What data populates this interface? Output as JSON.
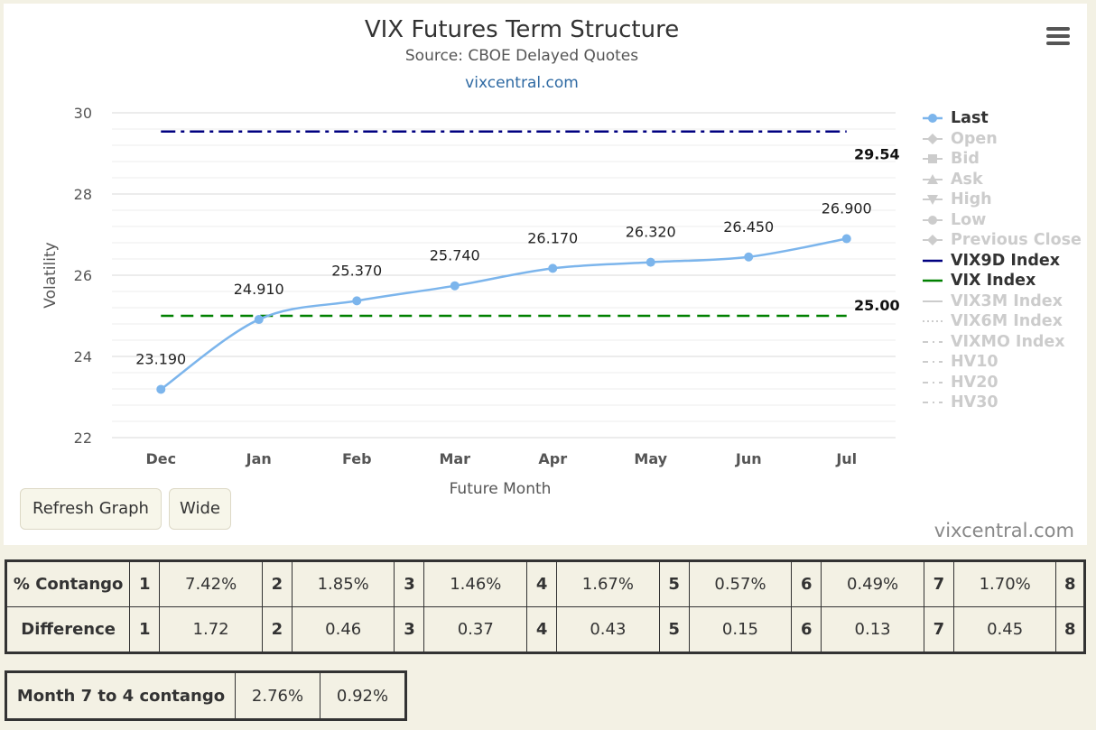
{
  "chart_data": {
    "type": "line",
    "title": "VIX Futures Term Structure",
    "subtitle": "Source: CBOE Delayed Quotes",
    "site_label": "vixcentral.com",
    "credit": "vixcentral.com",
    "xlabel": "Future Month",
    "ylabel": "Volatility",
    "categories": [
      "Dec",
      "Jan",
      "Feb",
      "Mar",
      "Apr",
      "May",
      "Jun",
      "Jul"
    ],
    "ylim": [
      22,
      30
    ],
    "yticks": [
      22,
      24,
      26,
      28,
      30
    ],
    "series": [
      {
        "name": "Last",
        "values": [
          23.19,
          24.91,
          25.37,
          25.74,
          26.17,
          26.32,
          26.45,
          26.9
        ],
        "labels": [
          "23.190",
          "24.910",
          "25.370",
          "25.740",
          "26.170",
          "26.320",
          "26.450",
          "26.900"
        ],
        "color": "#7cb5ec"
      }
    ],
    "hlines": [
      {
        "name": "VIX9D Index",
        "value": 29.54,
        "label": "29.54",
        "color": "#000080",
        "dash": "dashdot"
      },
      {
        "name": "VIX Index",
        "value": 25.0,
        "label": "25.00",
        "color": "#008000",
        "dash": "dash"
      }
    ],
    "legend": [
      {
        "name": "Last",
        "active": true,
        "symbol": "circle-line",
        "color": "#7cb5ec"
      },
      {
        "name": "Open",
        "active": false,
        "symbol": "diamond-line"
      },
      {
        "name": "Bid",
        "active": false,
        "symbol": "square-line"
      },
      {
        "name": "Ask",
        "active": false,
        "symbol": "triangle-line"
      },
      {
        "name": "High",
        "active": false,
        "symbol": "triangle-down-line"
      },
      {
        "name": "Low",
        "active": false,
        "symbol": "circle-line"
      },
      {
        "name": "Previous Close",
        "active": false,
        "symbol": "diamond-line"
      },
      {
        "name": "VIX9D Index",
        "active": true,
        "symbol": "line",
        "color": "#000080"
      },
      {
        "name": "VIX Index",
        "active": true,
        "symbol": "line",
        "color": "#008000"
      },
      {
        "name": "VIX3M Index",
        "active": false,
        "symbol": "line"
      },
      {
        "name": "VIX6M Index",
        "active": false,
        "symbol": "dotted"
      },
      {
        "name": "VIXMO Index",
        "active": false,
        "symbol": "dashdot"
      },
      {
        "name": "HV10",
        "active": false,
        "symbol": "dashdot"
      },
      {
        "name": "HV20",
        "active": false,
        "symbol": "dashdot"
      },
      {
        "name": "HV30",
        "active": false,
        "symbol": "dashdot"
      }
    ],
    "legend_position": "right",
    "grid": true
  },
  "buttons": {
    "refresh": "Refresh Graph",
    "wide": "Wide"
  },
  "contango_table": {
    "rows": [
      {
        "label": "% Contango",
        "cells": [
          "1",
          "7.42%",
          "2",
          "1.85%",
          "3",
          "1.46%",
          "4",
          "1.67%",
          "5",
          "0.57%",
          "6",
          "0.49%",
          "7",
          "1.70%",
          "8"
        ]
      },
      {
        "label": "Difference",
        "cells": [
          "1",
          "1.72",
          "2",
          "0.46",
          "3",
          "0.37",
          "4",
          "0.43",
          "5",
          "0.15",
          "6",
          "0.13",
          "7",
          "0.45",
          "8"
        ]
      }
    ]
  },
  "month74": {
    "label": "Month 7 to 4 contango",
    "values": [
      "2.76%",
      "0.92%"
    ]
  }
}
